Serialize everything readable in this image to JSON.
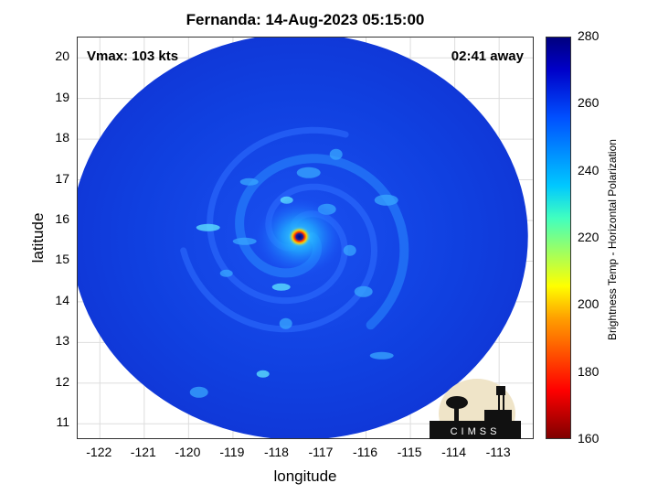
{
  "title": "Fernanda: 14-Aug-2023 05:15:00",
  "vmax_label": "Vmax: 103 kts",
  "time_away_label": "02:41 away",
  "xlabel": "longitude",
  "ylabel": "latitude",
  "colorbar": {
    "label": "Brightness Temp - Horizontal Polarization",
    "ticks": [
      "280",
      "260",
      "240",
      "220",
      "200",
      "180",
      "160"
    ],
    "range": [
      160,
      280
    ],
    "colormap": "jet",
    "colors": [
      "#7f0000",
      "#ff0000",
      "#ffa000",
      "#ffff00",
      "#40ffc0",
      "#00c8ff",
      "#0050ff",
      "#0000c8",
      "#00007f"
    ]
  },
  "x_ticks": [
    "-122",
    "-121",
    "-120",
    "-119",
    "-118",
    "-117",
    "-116",
    "-115",
    "-114",
    "-113"
  ],
  "y_ticks": [
    "20",
    "19",
    "18",
    "17",
    "16",
    "15",
    "14",
    "13",
    "12",
    "11"
  ],
  "logo_text": "CIMSS",
  "map": {
    "lon_range": [
      -122.5,
      -112.2
    ],
    "lat_range": [
      10.6,
      20.5
    ],
    "storm_center": {
      "lon": -117.5,
      "lat": 15.6
    },
    "swath_center": {
      "lon": -117.5,
      "lat": 15.6
    },
    "grid": true
  }
}
